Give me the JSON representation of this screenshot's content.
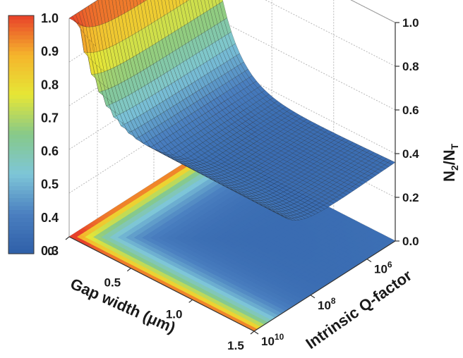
{
  "chart_data": {
    "type": "surface3d",
    "title": "",
    "xlabel": "Gap width (μm)",
    "ylabel": "Intrinsic Q-factor",
    "zlabel_main": "N",
    "zlabel_sub1": "2",
    "zlabel_sep": "/N",
    "zlabel_sub2": "T",
    "x_ticks": [
      "0",
      "0.5",
      "1.0",
      "1.5"
    ],
    "x_tick_values": [
      0,
      0.5,
      1.0,
      1.5
    ],
    "y_ticks": [
      {
        "base": "10",
        "exp": "6",
        "value": 1000000
      },
      {
        "base": "10",
        "exp": "8",
        "value": 100000000
      },
      {
        "base": "10",
        "exp": "10",
        "value": 10000000000
      }
    ],
    "z_ticks": [
      "0.0",
      "0.2",
      "0.4",
      "0.6",
      "0.8",
      "1.0"
    ],
    "z_tick_values": [
      0.0,
      0.2,
      0.4,
      0.6,
      0.8,
      1.0
    ],
    "xlim": [
      0,
      1.5
    ],
    "ylim_log10": [
      5,
      10
    ],
    "zlim": [
      0,
      1.0
    ],
    "colorbar": {
      "ticks": [
        "1.0",
        "0.9",
        "0.8",
        "0.7",
        "0.6",
        "0.5",
        "0.4",
        "0.3"
      ],
      "range": [
        0.3,
        1.0
      ],
      "colormap": "jet",
      "colors": [
        "#2f5fa8",
        "#4a7fc0",
        "#7ec6d8",
        "#86c98a",
        "#e6e636",
        "#f5b52c",
        "#e8402a"
      ]
    },
    "surface": {
      "min_value": 0.32,
      "max_value": 1.0,
      "description_points": [
        {
          "x": 0.0,
          "logQ": 5,
          "z": 1.0
        },
        {
          "x": 0.75,
          "logQ": 5,
          "z": 1.0
        },
        {
          "x": 1.5,
          "logQ": 5,
          "z": 1.0
        },
        {
          "x": 0.0,
          "logQ": 10,
          "z": 1.0
        },
        {
          "x": 1.5,
          "logQ": 10,
          "z": 0.35
        },
        {
          "x": 1.0,
          "logQ": 8,
          "z": 0.4
        }
      ]
    },
    "grid": true,
    "projection": "contour projection on floor"
  }
}
